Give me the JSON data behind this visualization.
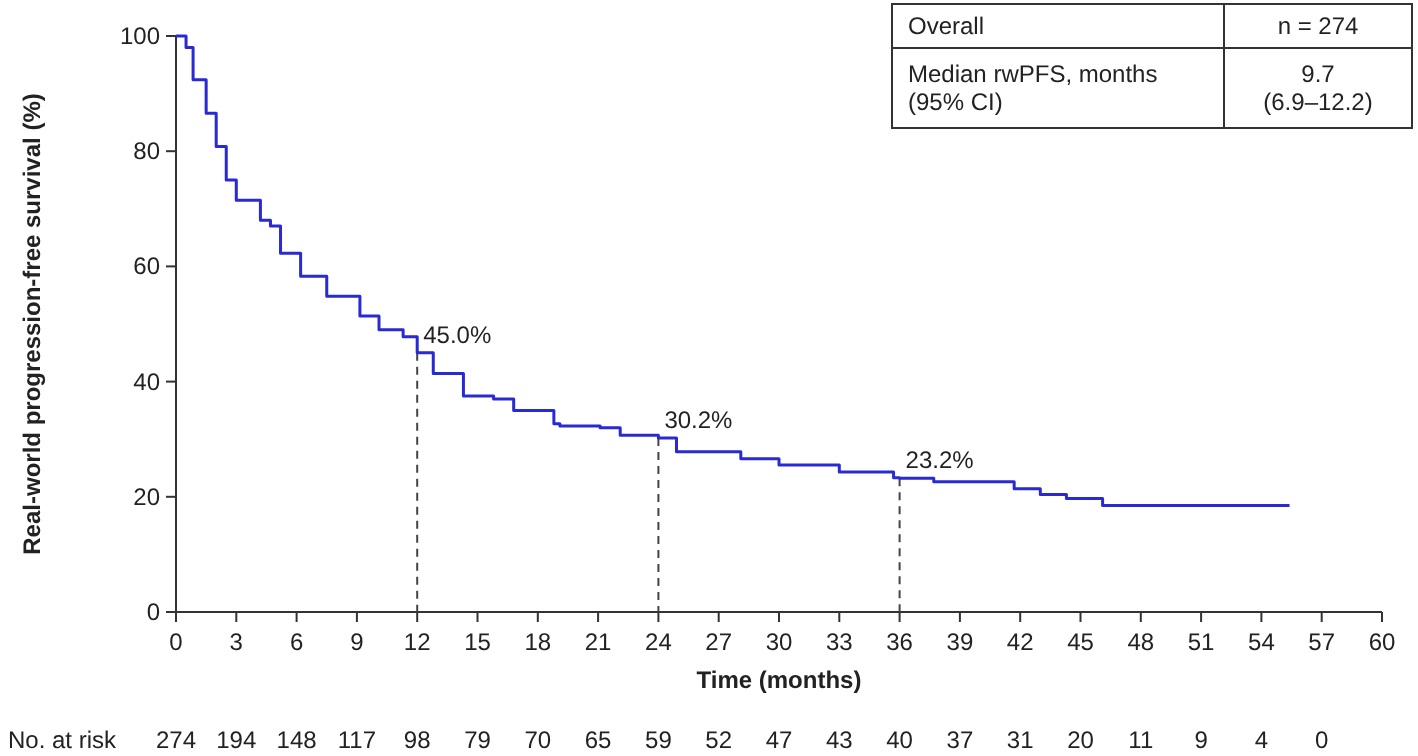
{
  "chart_data": {
    "type": "step",
    "xlabel": "Time (months)",
    "ylabel": "Real-world progression-free survival (%)",
    "xlim": [
      0,
      60
    ],
    "xticks": [
      0,
      3,
      6,
      9,
      12,
      15,
      18,
      21,
      24,
      27,
      30,
      33,
      36,
      39,
      42,
      45,
      48,
      51,
      54,
      57,
      60
    ],
    "ylim": [
      0,
      100
    ],
    "yticks": [
      0,
      20,
      40,
      60,
      80,
      100
    ],
    "grid": false,
    "series": [
      {
        "color": "#2a2ad2",
        "x": [
          0,
          0.5,
          0.85,
          1.5,
          2.0,
          2.5,
          3.0,
          4.2,
          4.7,
          5.2,
          6.2,
          7.5,
          9.15,
          10.1,
          11.3,
          12,
          12.8,
          14.3,
          15.8,
          16.8,
          18.8,
          19.1,
          21.1,
          22.1,
          24,
          24.9,
          28.1,
          30.0,
          33.0,
          35.7,
          36,
          37.7,
          41.7,
          43.0,
          44.3,
          46.1,
          55.4
        ],
        "values": [
          100,
          98,
          92.4,
          86.6,
          80.8,
          75,
          71.5,
          68,
          67,
          62.3,
          58.3,
          54.8,
          51.4,
          49,
          47.8,
          45.0,
          41.4,
          37.5,
          37,
          35,
          32.7,
          32.3,
          32,
          30.7,
          30.2,
          27.8,
          26.6,
          25.5,
          24.3,
          23.3,
          23.2,
          22.6,
          21.4,
          20.4,
          19.7,
          18.5,
          18.5
        ]
      }
    ],
    "annotations": [
      {
        "text": "45.0%",
        "x": 12,
        "y": 45.0
      },
      {
        "text": "30.2%",
        "x": 24,
        "y": 30.2
      },
      {
        "text": "23.2%",
        "x": 36,
        "y": 23.2
      },
      "Overall",
      "n = 274",
      "Median rwPFS, months\n(95% CI)",
      "9.7\n(6.9–12.2)",
      "No. at risk",
      "274",
      "194",
      "148",
      "117",
      "98",
      "79",
      "70",
      "65",
      "59",
      "52",
      "47",
      "43",
      "40",
      "37",
      "31",
      "20",
      "11",
      "9",
      "4",
      "0"
    ]
  }
}
